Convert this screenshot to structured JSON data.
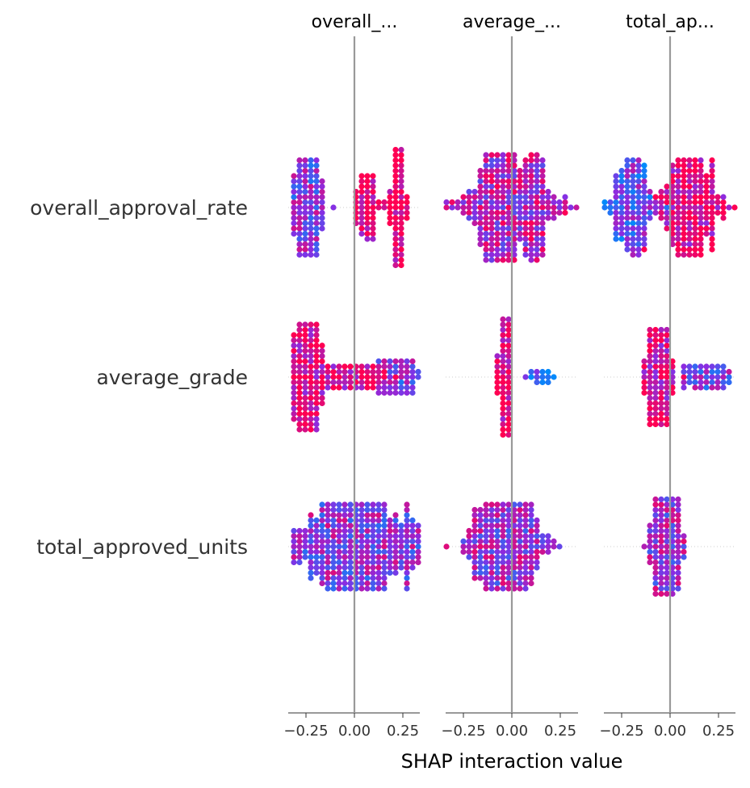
{
  "chart_data": {
    "type": "scatter",
    "subtype": "shap-interaction-beeswarm-grid",
    "xlabel": "SHAP interaction value",
    "row_features": [
      "overall_approval_rate",
      "average_grade",
      "total_approved_units"
    ],
    "column_titles": [
      "overall_...",
      "average_...",
      "total_ap..."
    ],
    "x_tick_values": [
      -0.25,
      0.0,
      0.25
    ],
    "x_tick_labels": [
      "−0.25",
      "0.00",
      "0.25"
    ],
    "xlim": [
      -0.35,
      0.35
    ],
    "colors": {
      "low": "#008bfb",
      "high": "#ff0052",
      "zero_line": "#999999",
      "axis": "#333333",
      "dotted_guide": "#cccccc"
    },
    "cells": [
      {
        "row": "overall_approval_rate",
        "col": "overall_...",
        "clusters": [
          {
            "center": -0.24,
            "spread": 0.045,
            "max_half_height": 0.85,
            "count": 130,
            "color_mix": 0.45
          },
          {
            "center": 0.06,
            "spread": 0.04,
            "max_half_height": 0.55,
            "count": 60,
            "color_mix": 0.9
          },
          {
            "center": 0.23,
            "spread": 0.018,
            "max_half_height": 1.0,
            "count": 120,
            "color_mix": 0.95
          }
        ]
      },
      {
        "row": "overall_approval_rate",
        "col": "average_...",
        "clusters": [
          {
            "center": 0.0,
            "spread": 0.12,
            "max_half_height": 0.95,
            "count": 340,
            "color_mix": 0.65
          }
        ]
      },
      {
        "row": "overall_approval_rate",
        "col": "total_ap...",
        "clusters": [
          {
            "center": -0.2,
            "spread": 0.06,
            "max_half_height": 0.85,
            "count": 120,
            "color_mix": 0.35
          },
          {
            "center": 0.1,
            "spread": 0.08,
            "max_half_height": 0.85,
            "count": 200,
            "color_mix": 0.85
          }
        ]
      },
      {
        "row": "average_grade",
        "col": "overall_...",
        "clusters": [
          {
            "center": -0.24,
            "spread": 0.04,
            "max_half_height": 0.95,
            "count": 200,
            "color_mix": 0.85
          },
          {
            "center": 0.0,
            "spread": 0.09,
            "max_half_height": 0.25,
            "count": 120,
            "color_mix": 0.85
          },
          {
            "center": 0.22,
            "spread": 0.06,
            "max_half_height": 0.3,
            "count": 90,
            "color_mix": 0.45
          }
        ]
      },
      {
        "row": "average_grade",
        "col": "average_...",
        "clusters": [
          {
            "center": -0.04,
            "spread": 0.012,
            "max_half_height": 1.0,
            "count": 200,
            "color_mix": 0.9
          },
          {
            "center": 0.14,
            "spread": 0.03,
            "max_half_height": 0.15,
            "count": 40,
            "color_mix": 0.15
          }
        ]
      },
      {
        "row": "average_grade",
        "col": "total_ap...",
        "clusters": [
          {
            "center": -0.06,
            "spread": 0.03,
            "max_half_height": 0.9,
            "count": 180,
            "color_mix": 0.8
          },
          {
            "center": 0.2,
            "spread": 0.06,
            "max_half_height": 0.25,
            "count": 90,
            "color_mix": 0.45
          }
        ]
      },
      {
        "row": "total_approved_units",
        "col": "overall_...",
        "clusters": [
          {
            "center": 0.0,
            "spread": 0.2,
            "max_half_height": 0.8,
            "count": 420,
            "color_mix": 0.5
          }
        ]
      },
      {
        "row": "total_approved_units",
        "col": "average_...",
        "clusters": [
          {
            "center": -0.04,
            "spread": 0.1,
            "max_half_height": 0.75,
            "count": 320,
            "color_mix": 0.55
          }
        ]
      },
      {
        "row": "total_approved_units",
        "col": "total_ap...",
        "clusters": [
          {
            "center": -0.02,
            "spread": 0.04,
            "max_half_height": 0.85,
            "count": 200,
            "color_mix": 0.55
          }
        ]
      }
    ]
  }
}
